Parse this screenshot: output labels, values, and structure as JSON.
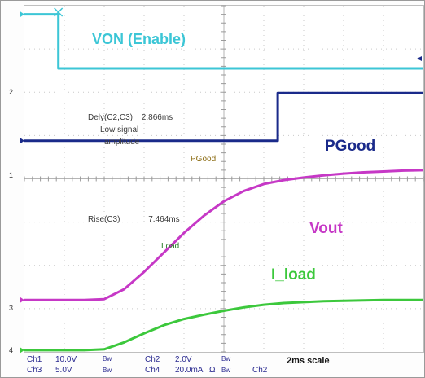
{
  "chart_data": {
    "type": "line",
    "title": "",
    "xlabel": "",
    "ylabel": "",
    "x_unit": "ms",
    "xlim": [
      0,
      20
    ],
    "ylim_divs": [
      0,
      8
    ],
    "grid": true,
    "time_scale": "2ms scale",
    "series": [
      {
        "name": "VON (Enable)",
        "channel": "Ch1",
        "color": "#3cc6d6",
        "marker": "2",
        "x": [
          0,
          1.7,
          1.7,
          20
        ],
        "y": [
          7.8,
          7.8,
          6.55,
          6.55
        ]
      },
      {
        "name": "PGood",
        "channel": "Ch2",
        "color": "#1a2a8a",
        "marker": "1",
        "x": [
          0,
          12.7,
          12.7,
          20
        ],
        "y": [
          4.88,
          4.88,
          5.98,
          5.98
        ]
      },
      {
        "name": "Vout",
        "channel": "Ch3",
        "color": "#c638c6",
        "marker": "3",
        "x": [
          0,
          3,
          4,
          5,
          6,
          7,
          8,
          9,
          10,
          11,
          12,
          13,
          14,
          15,
          16,
          17,
          18,
          19,
          20
        ],
        "y": [
          1.2,
          1.2,
          1.22,
          1.45,
          1.85,
          2.3,
          2.75,
          3.15,
          3.48,
          3.72,
          3.88,
          3.97,
          4.03,
          4.08,
          4.12,
          4.15,
          4.17,
          4.19,
          4.2
        ]
      },
      {
        "name": "I_load",
        "channel": "Ch4",
        "color": "#3cc83c",
        "marker": "4",
        "x": [
          0,
          3,
          4,
          5,
          6,
          7,
          8,
          9,
          10,
          11,
          12,
          13,
          14,
          15,
          16,
          17,
          18,
          19,
          20
        ],
        "y": [
          0.04,
          0.04,
          0.06,
          0.22,
          0.43,
          0.62,
          0.76,
          0.86,
          0.95,
          1.03,
          1.09,
          1.13,
          1.15,
          1.17,
          1.18,
          1.19,
          1.2,
          1.2,
          1.2
        ]
      }
    ],
    "annotations": {
      "delay_label": "Dely(C2,C3)",
      "delay_value": "2.866ms",
      "delay_note_1": "Low signal",
      "delay_note_2": "amplitude",
      "pgood_small": "PGood",
      "rise_label": "Rise(C3)",
      "rise_value": "7.464ms",
      "load_small": "Load",
      "vout_small": "Vout"
    },
    "readout": {
      "ch1": "Ch1",
      "ch1_scale": "10.0V",
      "ch3": "Ch3",
      "ch3_scale": "5.0V",
      "bw": "Bw",
      "ch2": "Ch2",
      "ch2_scale": "2.0V",
      "ch4": "Ch4",
      "ch4_scale": "20.0mA",
      "ohm": "Ω",
      "trig": "Ch2"
    },
    "level_markers": [
      "1",
      "2",
      "3",
      "4"
    ]
  }
}
